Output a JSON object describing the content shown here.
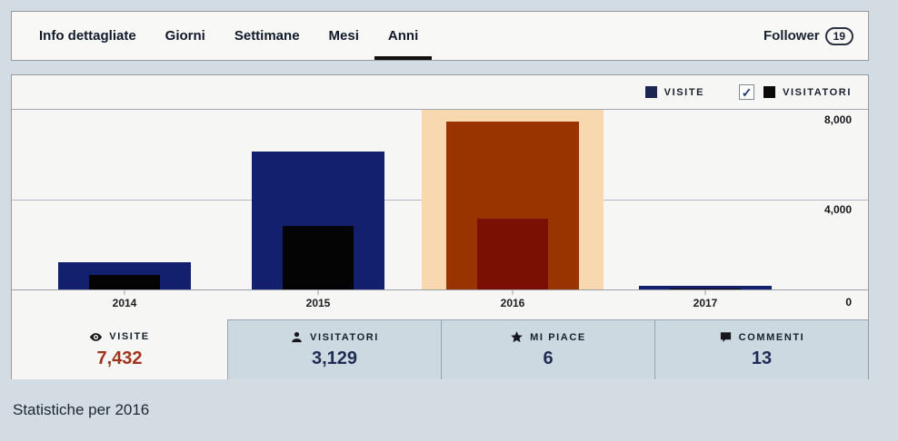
{
  "nav": {
    "tabs": [
      {
        "label": "Info dettagliate",
        "active": false
      },
      {
        "label": "Giorni",
        "active": false
      },
      {
        "label": "Settimane",
        "active": false
      },
      {
        "label": "Mesi",
        "active": false
      },
      {
        "label": "Anni",
        "active": true
      }
    ],
    "follower_label": "Follower",
    "follower_count": "19"
  },
  "legend": {
    "visite_label": "VISITE",
    "visite_swatch_color": "#1d2553",
    "visitatori_label": "VISITATORI",
    "visitatori_swatch_color": "#0a0a0a",
    "visitatori_checkbox_checked": true,
    "checkmark": "✓"
  },
  "chart_data": {
    "type": "bar",
    "categories": [
      "2014",
      "2015",
      "2016",
      "2017"
    ],
    "series": [
      {
        "name": "Visite",
        "values": [
          1200,
          6100,
          7432,
          160
        ],
        "color": "#12206e",
        "selected_color": "#993300"
      },
      {
        "name": "Visitatori",
        "values": [
          640,
          2800,
          3129,
          60
        ],
        "color": "#040404",
        "selected_color": "#7a1004"
      }
    ],
    "selected_category": "2016",
    "selected_band_color": "#f8d8ae",
    "ylim": [
      0,
      8000
    ],
    "yticks": [
      "8,000",
      "4,000",
      "0"
    ],
    "grid": true,
    "legend_position": "top-right",
    "title": "Statistiche per 2016"
  },
  "stats": [
    {
      "icon": "eye-icon",
      "label": "VISITE",
      "value": "7,432",
      "value_color": "#a0331c",
      "active": true
    },
    {
      "icon": "person-icon",
      "label": "VISITATORI",
      "value": "3,129",
      "value_color": "#202c55",
      "active": false
    },
    {
      "icon": "star-icon",
      "label": "MI PIACE",
      "value": "6",
      "value_color": "#202c55",
      "active": false
    },
    {
      "icon": "comment-icon",
      "label": "COMMENTI",
      "value": "13",
      "value_color": "#202c55",
      "active": false
    }
  ],
  "footer": {
    "title": "Statistiche per 2016"
  }
}
